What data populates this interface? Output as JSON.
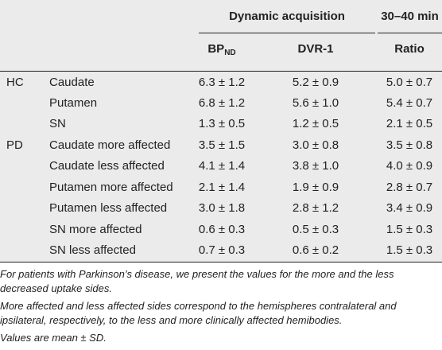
{
  "header": {
    "group1": "Dynamic acquisition",
    "group2": "30–40 min",
    "col_bp_main": "BP",
    "col_bp_sub": "ND",
    "col_dvr": "DVR-1",
    "col_ratio": "Ratio"
  },
  "rows": [
    {
      "group": "HC",
      "region": "Caudate",
      "bp": "6.3 ± 1.2",
      "dvr": "5.2 ± 0.9",
      "ratio": "5.0 ± 0.7"
    },
    {
      "group": "",
      "region": "Putamen",
      "bp": "6.8 ± 1.2",
      "dvr": "5.6 ± 1.0",
      "ratio": "5.4 ± 0.7"
    },
    {
      "group": "",
      "region": "SN",
      "bp": "1.3 ± 0.5",
      "dvr": "1.2 ± 0.5",
      "ratio": "2.1 ± 0.5"
    },
    {
      "group": "PD",
      "region": "Caudate more affected",
      "bp": "3.5 ± 1.5",
      "dvr": "3.0 ± 0.8",
      "ratio": "3.5 ± 0.8"
    },
    {
      "group": "",
      "region": "Caudate less affected",
      "bp": "4.1 ± 1.4",
      "dvr": "3.8 ± 1.0",
      "ratio": "4.0 ± 0.9"
    },
    {
      "group": "",
      "region": "Putamen more affected",
      "bp": "2.1 ± 1.4",
      "dvr": "1.9 ± 0.9",
      "ratio": "2.8 ± 0.7"
    },
    {
      "group": "",
      "region": "Putamen less affected",
      "bp": "3.0 ± 1.8",
      "dvr": "2.8 ± 1.2",
      "ratio": "3.4 ± 0.9"
    },
    {
      "group": "",
      "region": "SN more affected",
      "bp": "0.6 ± 0.3",
      "dvr": "0.5 ± 0.3",
      "ratio": "1.5 ± 0.3"
    },
    {
      "group": "",
      "region": "SN less affected",
      "bp": "0.7 ± 0.3",
      "dvr": "0.6 ± 0.2",
      "ratio": "1.5 ± 0.3"
    }
  ],
  "notes": [
    "For patients with Parkinson’s disease, we present the values for the more and the less decreased uptake sides.",
    "More affected and less affected sides correspond to the hemispheres contralateral and ipsilateral, respectively, to the less and more clinically affected hemibodies.",
    "Values are mean ± SD."
  ]
}
